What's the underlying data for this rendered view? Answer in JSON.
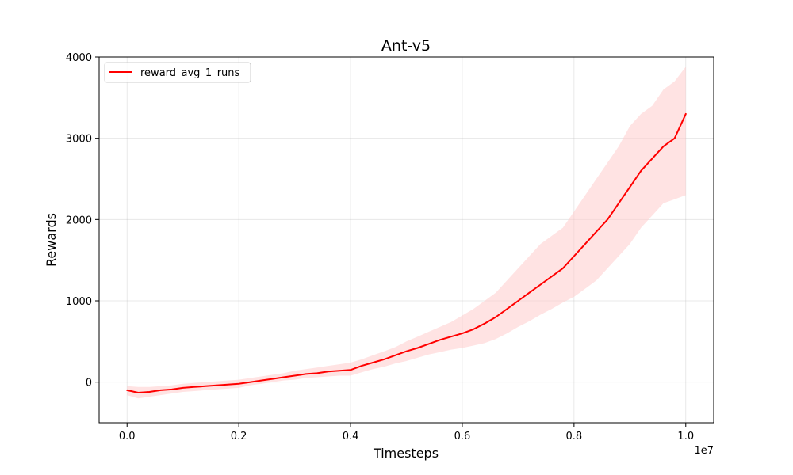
{
  "chart_data": {
    "type": "line",
    "title": "Ant-v5",
    "xlabel": "Timesteps",
    "ylabel": "Rewards",
    "x_offset_label": "1e7",
    "xlim": [
      -0.05,
      1.05
    ],
    "ylim": [
      -500,
      4000
    ],
    "x_ticks": [
      0.0,
      0.2,
      0.4,
      0.6,
      0.8,
      1.0
    ],
    "x_tick_labels": [
      "0.0",
      "0.2",
      "0.4",
      "0.6",
      "0.8",
      "1.0"
    ],
    "y_ticks": [
      0,
      1000,
      2000,
      3000,
      4000
    ],
    "y_tick_labels": [
      "0",
      "1000",
      "2000",
      "3000",
      "4000"
    ],
    "grid": true,
    "legend_position": "top-left",
    "series": [
      {
        "name": "reward_avg_1_runs",
        "color": "#ff0000",
        "band_color": "#ffcccc",
        "x": [
          0.0,
          0.02,
          0.04,
          0.06,
          0.08,
          0.1,
          0.12,
          0.14,
          0.16,
          0.18,
          0.2,
          0.22,
          0.24,
          0.26,
          0.28,
          0.3,
          0.32,
          0.34,
          0.36,
          0.38,
          0.4,
          0.42,
          0.44,
          0.46,
          0.48,
          0.5,
          0.52,
          0.54,
          0.56,
          0.58,
          0.6,
          0.62,
          0.64,
          0.66,
          0.68,
          0.7,
          0.72,
          0.74,
          0.76,
          0.78,
          0.8,
          0.82,
          0.84,
          0.86,
          0.88,
          0.9,
          0.92,
          0.94,
          0.96,
          0.98,
          1.0
        ],
        "mean": [
          -100,
          -130,
          -120,
          -100,
          -90,
          -70,
          -60,
          -50,
          -40,
          -30,
          -20,
          0,
          20,
          40,
          60,
          80,
          100,
          110,
          130,
          140,
          150,
          200,
          240,
          280,
          330,
          380,
          420,
          470,
          520,
          560,
          600,
          650,
          720,
          800,
          900,
          1000,
          1100,
          1200,
          1300,
          1400,
          1550,
          1700,
          1850,
          2000,
          2200,
          2400,
          2600,
          2750,
          2900,
          3000,
          3300
        ],
        "upper": [
          -50,
          -60,
          -60,
          -50,
          -40,
          -20,
          -10,
          0,
          10,
          20,
          30,
          50,
          70,
          90,
          110,
          140,
          160,
          180,
          200,
          220,
          240,
          280,
          330,
          380,
          430,
          500,
          560,
          620,
          680,
          740,
          820,
          900,
          1000,
          1100,
          1250,
          1400,
          1550,
          1700,
          1800,
          1900,
          2100,
          2300,
          2500,
          2700,
          2900,
          3150,
          3300,
          3400,
          3600,
          3700,
          3880
        ],
        "lower": [
          -160,
          -200,
          -180,
          -160,
          -140,
          -120,
          -110,
          -100,
          -90,
          -80,
          -70,
          -40,
          -20,
          0,
          20,
          30,
          50,
          60,
          70,
          80,
          80,
          120,
          160,
          190,
          230,
          260,
          300,
          340,
          370,
          400,
          420,
          450,
          480,
          530,
          600,
          680,
          750,
          830,
          900,
          980,
          1050,
          1150,
          1250,
          1400,
          1550,
          1700,
          1900,
          2050,
          2200,
          2250,
          2300
        ]
      }
    ]
  }
}
